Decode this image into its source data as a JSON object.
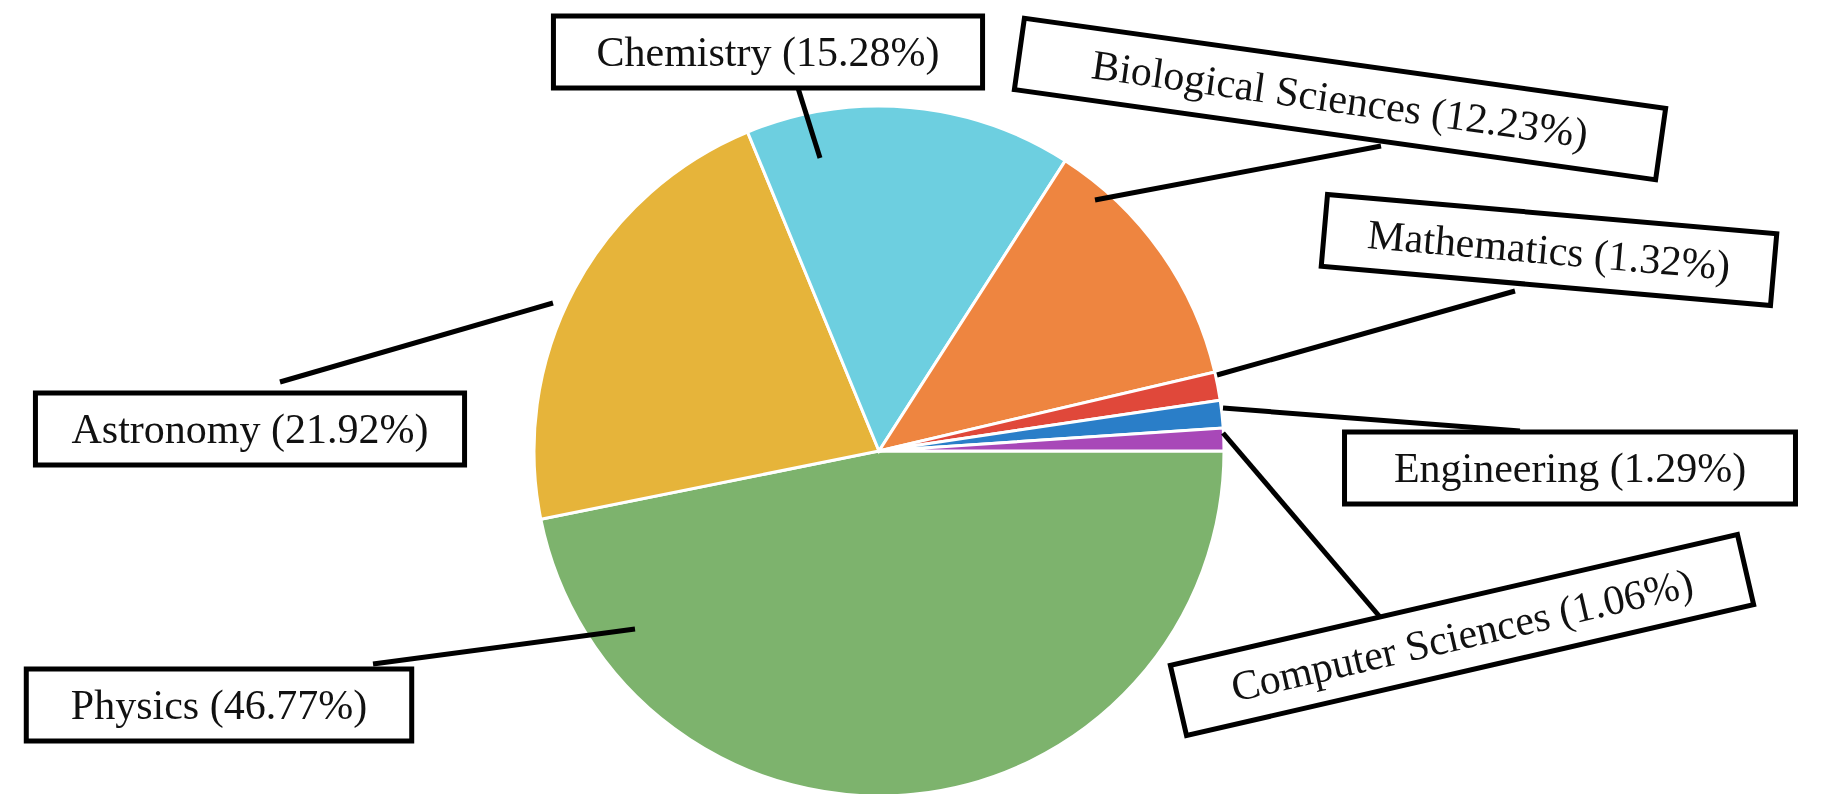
{
  "chart_data": {
    "type": "pie",
    "categories": [
      "Physics",
      "Astronomy",
      "Chemistry",
      "Biological Sciences",
      "Mathematics",
      "Engineering",
      "Computer Sciences"
    ],
    "values": [
      46.77,
      21.92,
      15.28,
      12.23,
      1.32,
      1.29,
      1.06
    ],
    "colors": [
      "#7db36d",
      "#e6b43a",
      "#6dcfe0",
      "#ee8540",
      "#e0483a",
      "#2a7ec8",
      "#a848b8"
    ],
    "value_labels": [
      "(46.77%)",
      "(21.92%)",
      "(15.28%)",
      "(12.23%)",
      "(1.32%)",
      "(1.29%)",
      "(1.06%)"
    ]
  }
}
